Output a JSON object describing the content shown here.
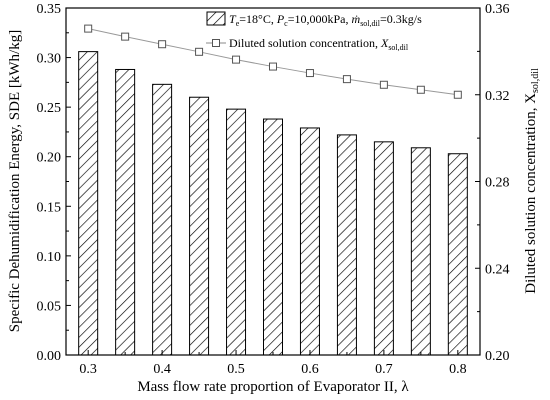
{
  "chart_data": {
    "type": "bar",
    "x": [
      0.3,
      0.35,
      0.4,
      0.45,
      0.5,
      0.55,
      0.6,
      0.65,
      0.7,
      0.75,
      0.8
    ],
    "series": [
      {
        "name": "T_e=18°C, P_c=10,000kPa, ṁ_sol,dil=0.3kg/s",
        "type": "bar",
        "axis": "left",
        "values": [
          0.306,
          0.288,
          0.273,
          0.26,
          0.248,
          0.238,
          0.229,
          0.222,
          0.215,
          0.209,
          0.203
        ]
      },
      {
        "name": "Diluted solution concentration, X_sol,dil",
        "type": "line",
        "axis": "right",
        "marker": "square",
        "values": [
          0.3505,
          0.3468,
          0.3433,
          0.3398,
          0.3362,
          0.333,
          0.33,
          0.3272,
          0.3246,
          0.3223,
          0.32
        ]
      }
    ],
    "xlabel": "Mass flow rate proportion of Evaporator II, λ",
    "ylabel": "Specific Dehumidification Energy, SDE [kWh/kg]",
    "y2label": "Diluted solution concentration, X",
    "y2label_sub": "sol,dil",
    "xlim": [
      0.27,
      0.83
    ],
    "ylim": [
      0,
      0.35
    ],
    "y2lim": [
      0.2,
      0.36
    ],
    "xticks": [
      "0.3",
      "0.4",
      "0.5",
      "0.6",
      "0.7",
      "0.8"
    ],
    "yticks": [
      "0.00",
      "0.05",
      "0.10",
      "0.15",
      "0.20",
      "0.25",
      "0.30",
      "0.35"
    ],
    "y2ticks": [
      "0.20",
      "0.24",
      "0.28",
      "0.32",
      "0.36"
    ],
    "legend_position": "top-right",
    "grid": false,
    "legend": {
      "entry1": {
        "Te": "T",
        "Te_sub": "e",
        "Te_val": "=18°C, ",
        "Pc": "P",
        "Pc_sub": "c",
        "Pc_val": "=10,000kPa, ",
        "m": "ṁ",
        "m_sub": "sol,dil",
        "m_val": "=0.3kg/s"
      },
      "entry2": {
        "text": "Diluted solution concentration, ",
        "X": "X",
        "X_sub": "sol,dil"
      }
    }
  }
}
